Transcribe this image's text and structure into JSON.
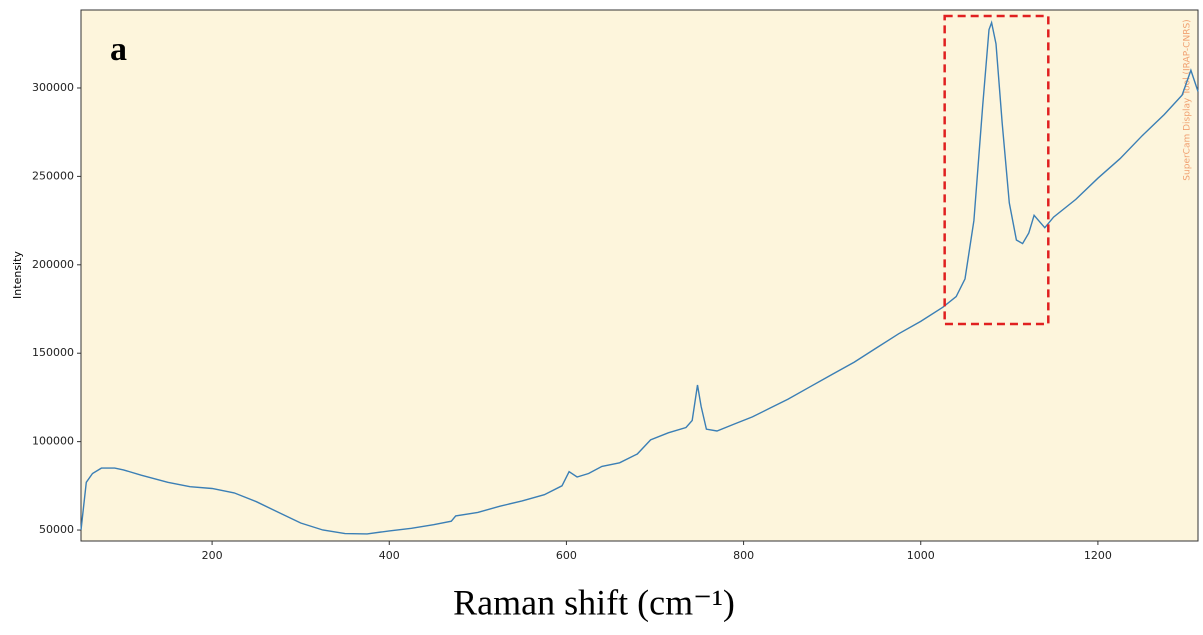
{
  "chart_data": {
    "type": "line",
    "annotation": "a",
    "watermark": "SuperCam Display Tool (IRAP-CNRS)",
    "x_label": "Raman shift (cm⁻¹)",
    "y_label": "Intensity",
    "xlim": [
      52,
      1313
    ],
    "ylim": [
      43800,
      344100
    ],
    "xticks": [
      200,
      400,
      600,
      800,
      1000,
      1200
    ],
    "yticks": [
      50000,
      100000,
      150000,
      200000,
      250000,
      300000
    ],
    "highlight": {
      "x": [
        1027,
        1144
      ],
      "y": [
        166500,
        340700
      ],
      "color": "#e02020"
    },
    "background": "#fdf5dc",
    "series": [
      {
        "color": "#3b7fb5",
        "x": [
          52,
          58,
          65,
          75,
          90,
          100,
          120,
          150,
          175,
          200,
          225,
          250,
          275,
          300,
          325,
          350,
          375,
          400,
          425,
          450,
          470,
          475,
          500,
          525,
          550,
          575,
          595,
          603,
          612,
          625,
          640,
          660,
          680,
          695,
          715,
          735,
          742,
          748,
          752,
          758,
          770,
          790,
          810,
          830,
          850,
          875,
          900,
          925,
          950,
          975,
          1000,
          1025,
          1040,
          1050,
          1060,
          1070,
          1077,
          1080,
          1085,
          1092,
          1100,
          1108,
          1115,
          1122,
          1128,
          1133,
          1140,
          1150,
          1175,
          1200,
          1225,
          1250,
          1275,
          1295,
          1305,
          1313
        ],
        "values": [
          50000,
          77000,
          82000,
          85000,
          85000,
          84000,
          81000,
          77000,
          74500,
          73500,
          71000,
          66000,
          60000,
          54000,
          50000,
          48000,
          47800,
          49500,
          51000,
          53000,
          55000,
          58000,
          60000,
          63500,
          66500,
          70000,
          75000,
          83000,
          80000,
          82000,
          86000,
          88000,
          93000,
          101000,
          105000,
          108000,
          112000,
          132000,
          120000,
          107000,
          106000,
          110000,
          114000,
          119000,
          124000,
          131000,
          138000,
          145000,
          153000,
          161000,
          168000,
          176000,
          182000,
          192000,
          225000,
          290000,
          333000,
          337000,
          325000,
          280000,
          235000,
          214000,
          212000,
          218000,
          228000,
          225000,
          221000,
          227000,
          237000,
          249000,
          260000,
          273000,
          285000,
          296000,
          310000,
          298000
        ]
      }
    ]
  }
}
